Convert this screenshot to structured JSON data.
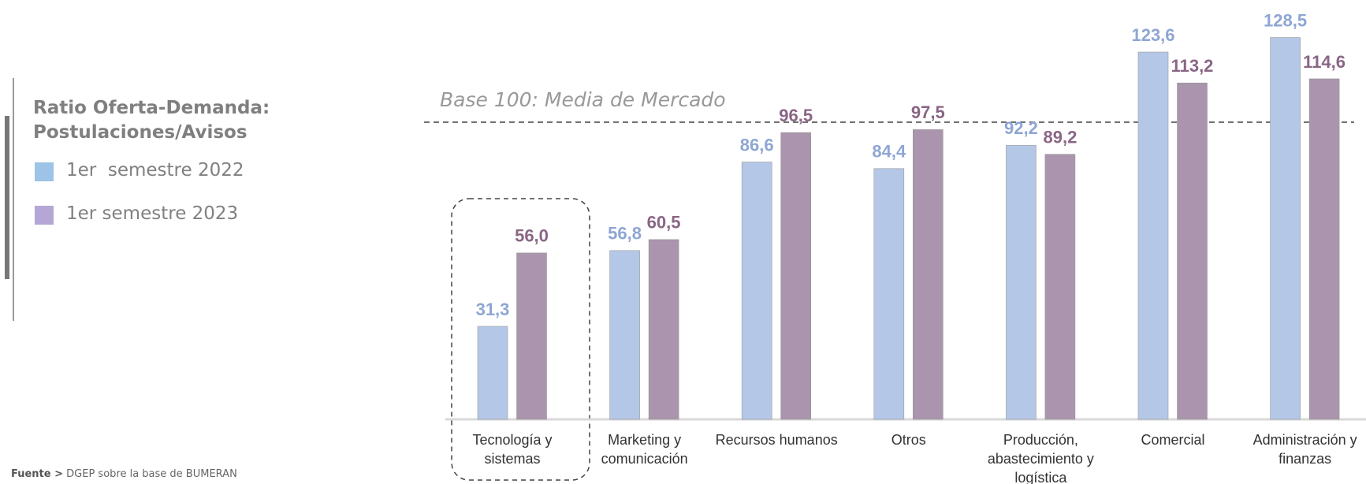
{
  "chart_data": {
    "type": "bar",
    "legend_title": "Ratio Oferta-Demanda: Postulaciones/Avisos",
    "annotation": "Base 100: Media de Mercado",
    "reference_line": 100,
    "categories": [
      "Tecnología y sistemas",
      "Marketing y comunicación",
      "Recursos humanos",
      "Otros",
      "Producción, abastecimiento y logística",
      "Comercial",
      "Administración y finanzas"
    ],
    "series": [
      {
        "name": "1er  semestre 2022",
        "color": "#b4c7e7",
        "label_color": "#8ea6d4",
        "legend_color": "#9dc3e6",
        "values": [
          31.3,
          56.8,
          86.6,
          84.4,
          92.2,
          123.6,
          128.5
        ],
        "value_labels": [
          "31,3",
          "56,8",
          "86,6",
          "84,4",
          "92,2",
          "123,6",
          "128,5"
        ]
      },
      {
        "name": "1er semestre 2023",
        "color": "#ab94ad",
        "label_color": "#8a6585",
        "legend_color": "#b4a7d6",
        "values": [
          56.0,
          60.5,
          96.5,
          97.5,
          89.2,
          113.2,
          114.6
        ],
        "value_labels": [
          "56,0",
          "60,5",
          "96,5",
          "97,5",
          "89,2",
          "113,2",
          "114,6"
        ]
      }
    ],
    "source_label": "Fuente >",
    "source": "DGEP sobre la base de BUMERAN"
  }
}
